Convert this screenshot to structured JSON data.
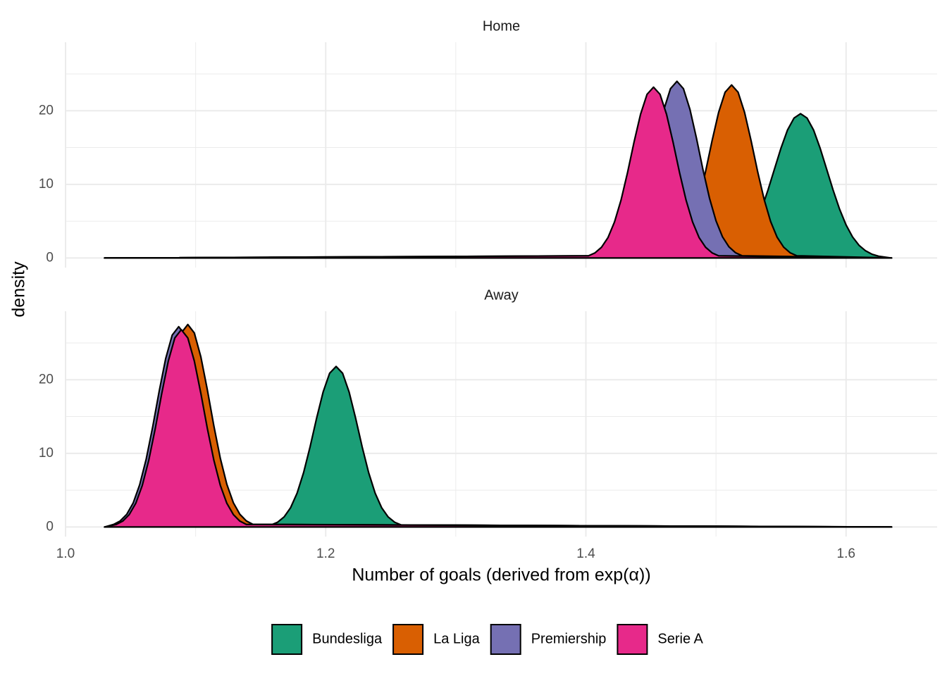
{
  "chart_data": [
    {
      "type": "density",
      "title": "Home",
      "ylabel": "density",
      "xlim": [
        1.0,
        1.67
      ],
      "ylim": [
        -1.3,
        29.3
      ],
      "xticks": [
        {
          "value": 1,
          "label": "1.0"
        },
        1.2,
        1.4,
        1.6
      ],
      "yticks": [
        0,
        10,
        20
      ],
      "grid": true,
      "legend": "bottom",
      "series": [
        {
          "name": "Bundesliga",
          "color": "#1b9e77",
          "x": [
            1.03,
            1.505,
            1.51,
            1.515,
            1.52,
            1.525,
            1.53,
            1.535,
            1.54,
            1.545,
            1.55,
            1.555,
            1.56,
            1.565,
            1.57,
            1.575,
            1.58,
            1.585,
            1.59,
            1.595,
            1.6,
            1.605,
            1.61,
            1.615,
            1.62,
            1.625,
            1.635
          ],
          "values": [
            0,
            0.25,
            0.51,
            0.98,
            1.72,
            2.86,
            4.49,
            6.64,
            9.25,
            12.11,
            14.95,
            17.39,
            19.01,
            19.6,
            19.01,
            17.39,
            14.95,
            12.11,
            9.25,
            6.64,
            4.49,
            2.86,
            1.72,
            0.98,
            0.51,
            0.25,
            0
          ]
        },
        {
          "name": "La Liga",
          "color": "#d95f02",
          "x": [
            1.03,
            1.462,
            1.467,
            1.472,
            1.477,
            1.482,
            1.487,
            1.492,
            1.497,
            1.502,
            1.507,
            1.512,
            1.517,
            1.522,
            1.527,
            1.532,
            1.537,
            1.542,
            1.547,
            1.552,
            1.557,
            1.562,
            1.635
          ],
          "values": [
            0,
            0.31,
            0.71,
            1.48,
            2.82,
            4.96,
            7.97,
            11.75,
            15.93,
            19.76,
            22.51,
            23.5,
            22.51,
            19.76,
            15.93,
            11.75,
            7.97,
            4.96,
            2.82,
            1.48,
            0.71,
            0.31,
            0
          ]
        },
        {
          "name": "Premiership",
          "color": "#7570b3",
          "x": [
            1.03,
            1.42,
            1.425,
            1.43,
            1.435,
            1.44,
            1.445,
            1.45,
            1.455,
            1.46,
            1.465,
            1.47,
            1.475,
            1.48,
            1.485,
            1.49,
            1.495,
            1.5,
            1.505,
            1.51,
            1.515,
            1.52,
            1.635
          ],
          "values": [
            0,
            0.31,
            0.72,
            1.51,
            2.88,
            5.06,
            8.14,
            12.0,
            16.27,
            20.18,
            22.99,
            24.0,
            22.99,
            20.18,
            16.27,
            12.0,
            8.14,
            5.06,
            2.88,
            1.51,
            0.72,
            0.31,
            0
          ]
        },
        {
          "name": "Serie A",
          "color": "#e7298a",
          "x": [
            1.03,
            1.402,
            1.407,
            1.412,
            1.417,
            1.422,
            1.427,
            1.432,
            1.437,
            1.442,
            1.447,
            1.452,
            1.457,
            1.462,
            1.467,
            1.472,
            1.477,
            1.482,
            1.487,
            1.492,
            1.497,
            1.502,
            1.635
          ],
          "values": [
            0,
            0.3,
            0.7,
            1.46,
            2.78,
            4.9,
            7.86,
            11.6,
            15.73,
            19.51,
            22.23,
            23.2,
            22.23,
            19.51,
            15.73,
            11.6,
            7.86,
            4.9,
            2.78,
            1.46,
            0.7,
            0.3,
            0
          ]
        }
      ]
    },
    {
      "type": "density",
      "title": "Away",
      "xlabel": "Number of goals (derived from exp(α))",
      "xlim": [
        1.0,
        1.67
      ],
      "ylim": [
        -1.3,
        29.3
      ],
      "xticks": [
        {
          "value": 1,
          "label": "1.0"
        },
        1.2,
        1.4,
        1.6
      ],
      "yticks": [
        0,
        10,
        20
      ],
      "grid": true,
      "series": [
        {
          "name": "Bundesliga",
          "color": "#1b9e77",
          "x": [
            1.03,
            1.158,
            1.163,
            1.168,
            1.173,
            1.178,
            1.183,
            1.188,
            1.193,
            1.198,
            1.203,
            1.208,
            1.213,
            1.218,
            1.223,
            1.228,
            1.233,
            1.238,
            1.243,
            1.248,
            1.253,
            1.258,
            1.635
          ],
          "values": [
            0,
            0.28,
            0.65,
            1.37,
            2.62,
            4.6,
            7.39,
            10.9,
            14.78,
            18.33,
            20.88,
            21.8,
            20.88,
            18.33,
            14.78,
            10.9,
            7.39,
            4.6,
            2.62,
            1.37,
            0.65,
            0.28,
            0
          ]
        },
        {
          "name": "La Liga",
          "color": "#d95f02",
          "x": [
            1.03,
            1.044,
            1.049,
            1.054,
            1.059,
            1.064,
            1.069,
            1.074,
            1.079,
            1.084,
            1.089,
            1.094,
            1.099,
            1.104,
            1.109,
            1.114,
            1.119,
            1.124,
            1.129,
            1.134,
            1.139,
            1.144,
            1.635
          ],
          "values": [
            0,
            0.36,
            0.83,
            1.73,
            3.3,
            5.8,
            9.32,
            13.75,
            18.65,
            23.13,
            26.35,
            27.5,
            26.35,
            23.13,
            18.65,
            13.75,
            9.32,
            5.8,
            3.3,
            1.73,
            0.83,
            0.36,
            0
          ]
        },
        {
          "name": "Premiership",
          "color": "#7570b3",
          "x": [
            1.03,
            1.037,
            1.042,
            1.047,
            1.052,
            1.057,
            1.062,
            1.067,
            1.072,
            1.077,
            1.082,
            1.087,
            1.092,
            1.097,
            1.102,
            1.107,
            1.112,
            1.117,
            1.122,
            1.127,
            1.132,
            1.137,
            1.635
          ],
          "values": [
            0,
            0.35,
            0.82,
            1.71,
            3.26,
            5.74,
            9.22,
            13.6,
            18.44,
            22.88,
            26.06,
            27.2,
            26.06,
            22.88,
            18.44,
            13.6,
            9.22,
            5.74,
            3.26,
            1.71,
            0.82,
            0.35,
            0
          ]
        },
        {
          "name": "Serie A",
          "color": "#e7298a",
          "x": [
            1.03,
            1.039,
            1.044,
            1.049,
            1.054,
            1.059,
            1.064,
            1.069,
            1.074,
            1.079,
            1.084,
            1.089,
            1.094,
            1.099,
            1.104,
            1.109,
            1.114,
            1.119,
            1.124,
            1.129,
            1.134,
            1.139,
            1.635
          ],
          "values": [
            0,
            0.35,
            0.8,
            1.69,
            3.22,
            5.65,
            9.09,
            13.4,
            18.17,
            22.54,
            25.67,
            26.8,
            25.67,
            22.54,
            18.17,
            13.4,
            9.09,
            5.65,
            3.22,
            1.69,
            0.8,
            0.35,
            0
          ]
        }
      ]
    }
  ]
}
